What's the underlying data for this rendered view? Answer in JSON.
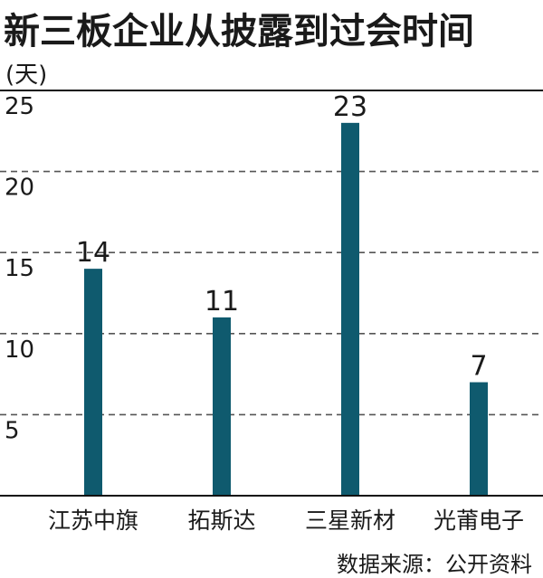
{
  "title": "新三板企业从披露到过会时间",
  "unit_label": "(天)",
  "source": "数据来源：公开资料",
  "colors": {
    "bar": "#0f5a6e",
    "grid": "#555555",
    "axis": "#111111",
    "text": "#1a1a1a"
  },
  "chart_data": {
    "type": "bar",
    "categories": [
      "江苏中旗",
      "拓斯达",
      "三星新材",
      "光莆电子"
    ],
    "values": [
      14,
      11,
      23,
      7
    ],
    "data_labels": [
      "14",
      "11",
      "23",
      "7"
    ],
    "ylim": [
      0,
      25
    ],
    "yticks": [
      5,
      10,
      15,
      20,
      25
    ],
    "ytick_labels": [
      "5",
      "10",
      "15",
      "20",
      "25"
    ],
    "grid": true,
    "grid_style": "dashed",
    "xlabel": "",
    "ylabel": "(天)"
  }
}
